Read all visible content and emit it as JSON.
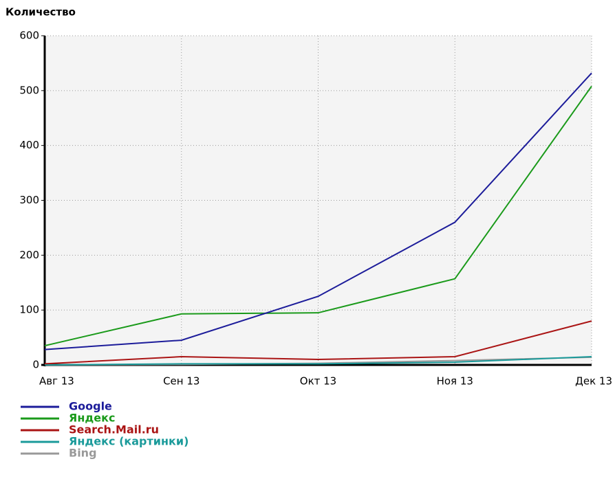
{
  "chart_data": {
    "type": "line",
    "y_label": "Количество",
    "categories": [
      "Авг 13",
      "Сен 13",
      "Окт 13",
      "Ноя 13",
      "Дек 13"
    ],
    "series": [
      {
        "name": "Google",
        "color": "#1c1c9a",
        "values": [
          28,
          45,
          125,
          260,
          532
        ]
      },
      {
        "name": "Яндекс",
        "color": "#1a9a1a",
        "values": [
          35,
          93,
          95,
          157,
          508
        ]
      },
      {
        "name": "Search.Mail.ru",
        "color": "#aa1414",
        "values": [
          2,
          15,
          10,
          15,
          80
        ]
      },
      {
        "name": "Яндекс (картинки)",
        "color": "#1a9a9a",
        "values": [
          0,
          2,
          2,
          5,
          15
        ]
      },
      {
        "name": "Bing",
        "color": "#999999",
        "values": [
          0,
          1,
          3,
          8,
          14
        ]
      }
    ],
    "ylim": [
      0,
      600
    ],
    "yticks": [
      0,
      100,
      200,
      300,
      400,
      500,
      600
    ],
    "grid": true
  }
}
